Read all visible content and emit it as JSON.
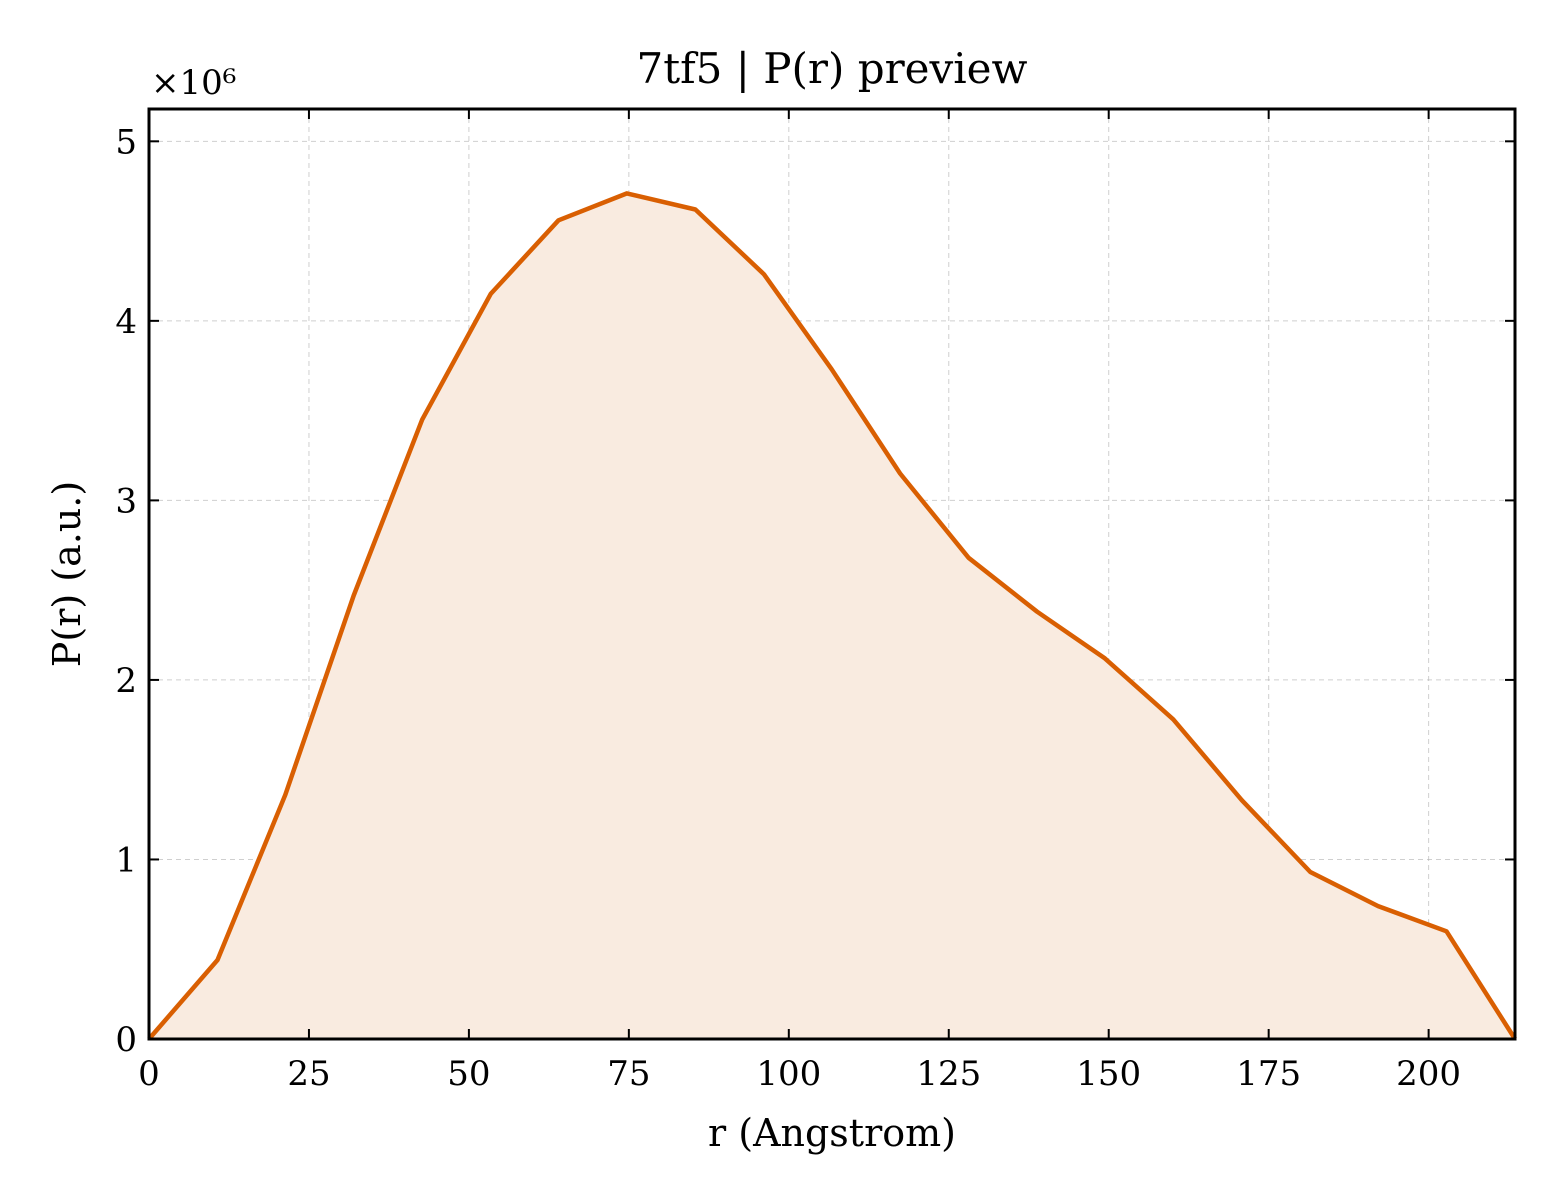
{
  "chart_data": {
    "type": "area",
    "title": "7tf5 | P(r) preview",
    "xlabel": "r (Angstrom)",
    "ylabel": "P(r) (a.u.)",
    "y_offset_label": "×10⁶",
    "xlim": [
      0,
      213.5
    ],
    "ylim": [
      0,
      5.18
    ],
    "y_scale": 1000000,
    "grid": true,
    "x_ticks": [
      0,
      25,
      50,
      75,
      100,
      125,
      150,
      175,
      200
    ],
    "x_tick_labels": [
      "0",
      "25",
      "50",
      "75",
      "100",
      "125",
      "150",
      "175",
      "200"
    ],
    "y_ticks": [
      0,
      1,
      2,
      3,
      4,
      5
    ],
    "y_tick_labels": [
      "0",
      "1",
      "2",
      "3",
      "4",
      "5"
    ],
    "series": [
      {
        "color": "#d95f02",
        "fill_color": "#f9ebe0",
        "x": [
          0,
          10.7,
          21.3,
          32.0,
          42.7,
          53.4,
          64.0,
          74.7,
          85.4,
          96.1,
          106.7,
          117.4,
          128.1,
          138.8,
          149.4,
          160.1,
          170.8,
          181.5,
          192.1,
          202.8,
          213.5
        ],
        "y": [
          0,
          0.44,
          1.36,
          2.47,
          3.45,
          4.15,
          4.56,
          4.71,
          4.62,
          4.26,
          3.73,
          3.15,
          2.68,
          2.38,
          2.12,
          1.78,
          1.33,
          0.93,
          0.74,
          0.6,
          0
        ]
      }
    ]
  }
}
